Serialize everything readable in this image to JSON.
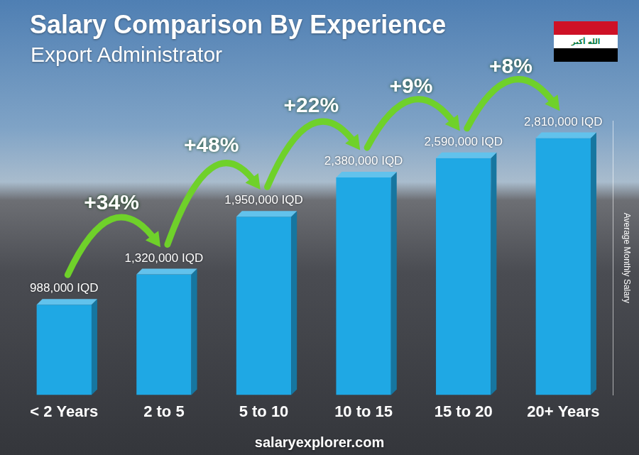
{
  "chart_data": {
    "type": "bar",
    "title": "Salary Comparison By Experience",
    "subtitle": "Export Administrator",
    "categories": [
      "< 2 Years",
      "2 to 5",
      "5 to 10",
      "10 to 15",
      "15 to 20",
      "20+ Years"
    ],
    "values": [
      988000,
      1320000,
      1950000,
      2380000,
      2590000,
      2810000
    ],
    "value_labels": [
      "988,000 IQD",
      "1,320,000 IQD",
      "1,950,000 IQD",
      "2,380,000 IQD",
      "2,590,000 IQD",
      "2,810,000 IQD"
    ],
    "color": "#1fa8e4",
    "ylim": [
      0,
      3000000
    ],
    "y_label": "Average Monthly Salary",
    "annotations": [
      "+34%",
      "+48%",
      "+22%",
      "+9%",
      "+8%"
    ],
    "source": "salaryexplorer.com",
    "flag_text": "الله أكبر",
    "grid": false,
    "data_labels": true,
    "tick_labels": "x"
  }
}
